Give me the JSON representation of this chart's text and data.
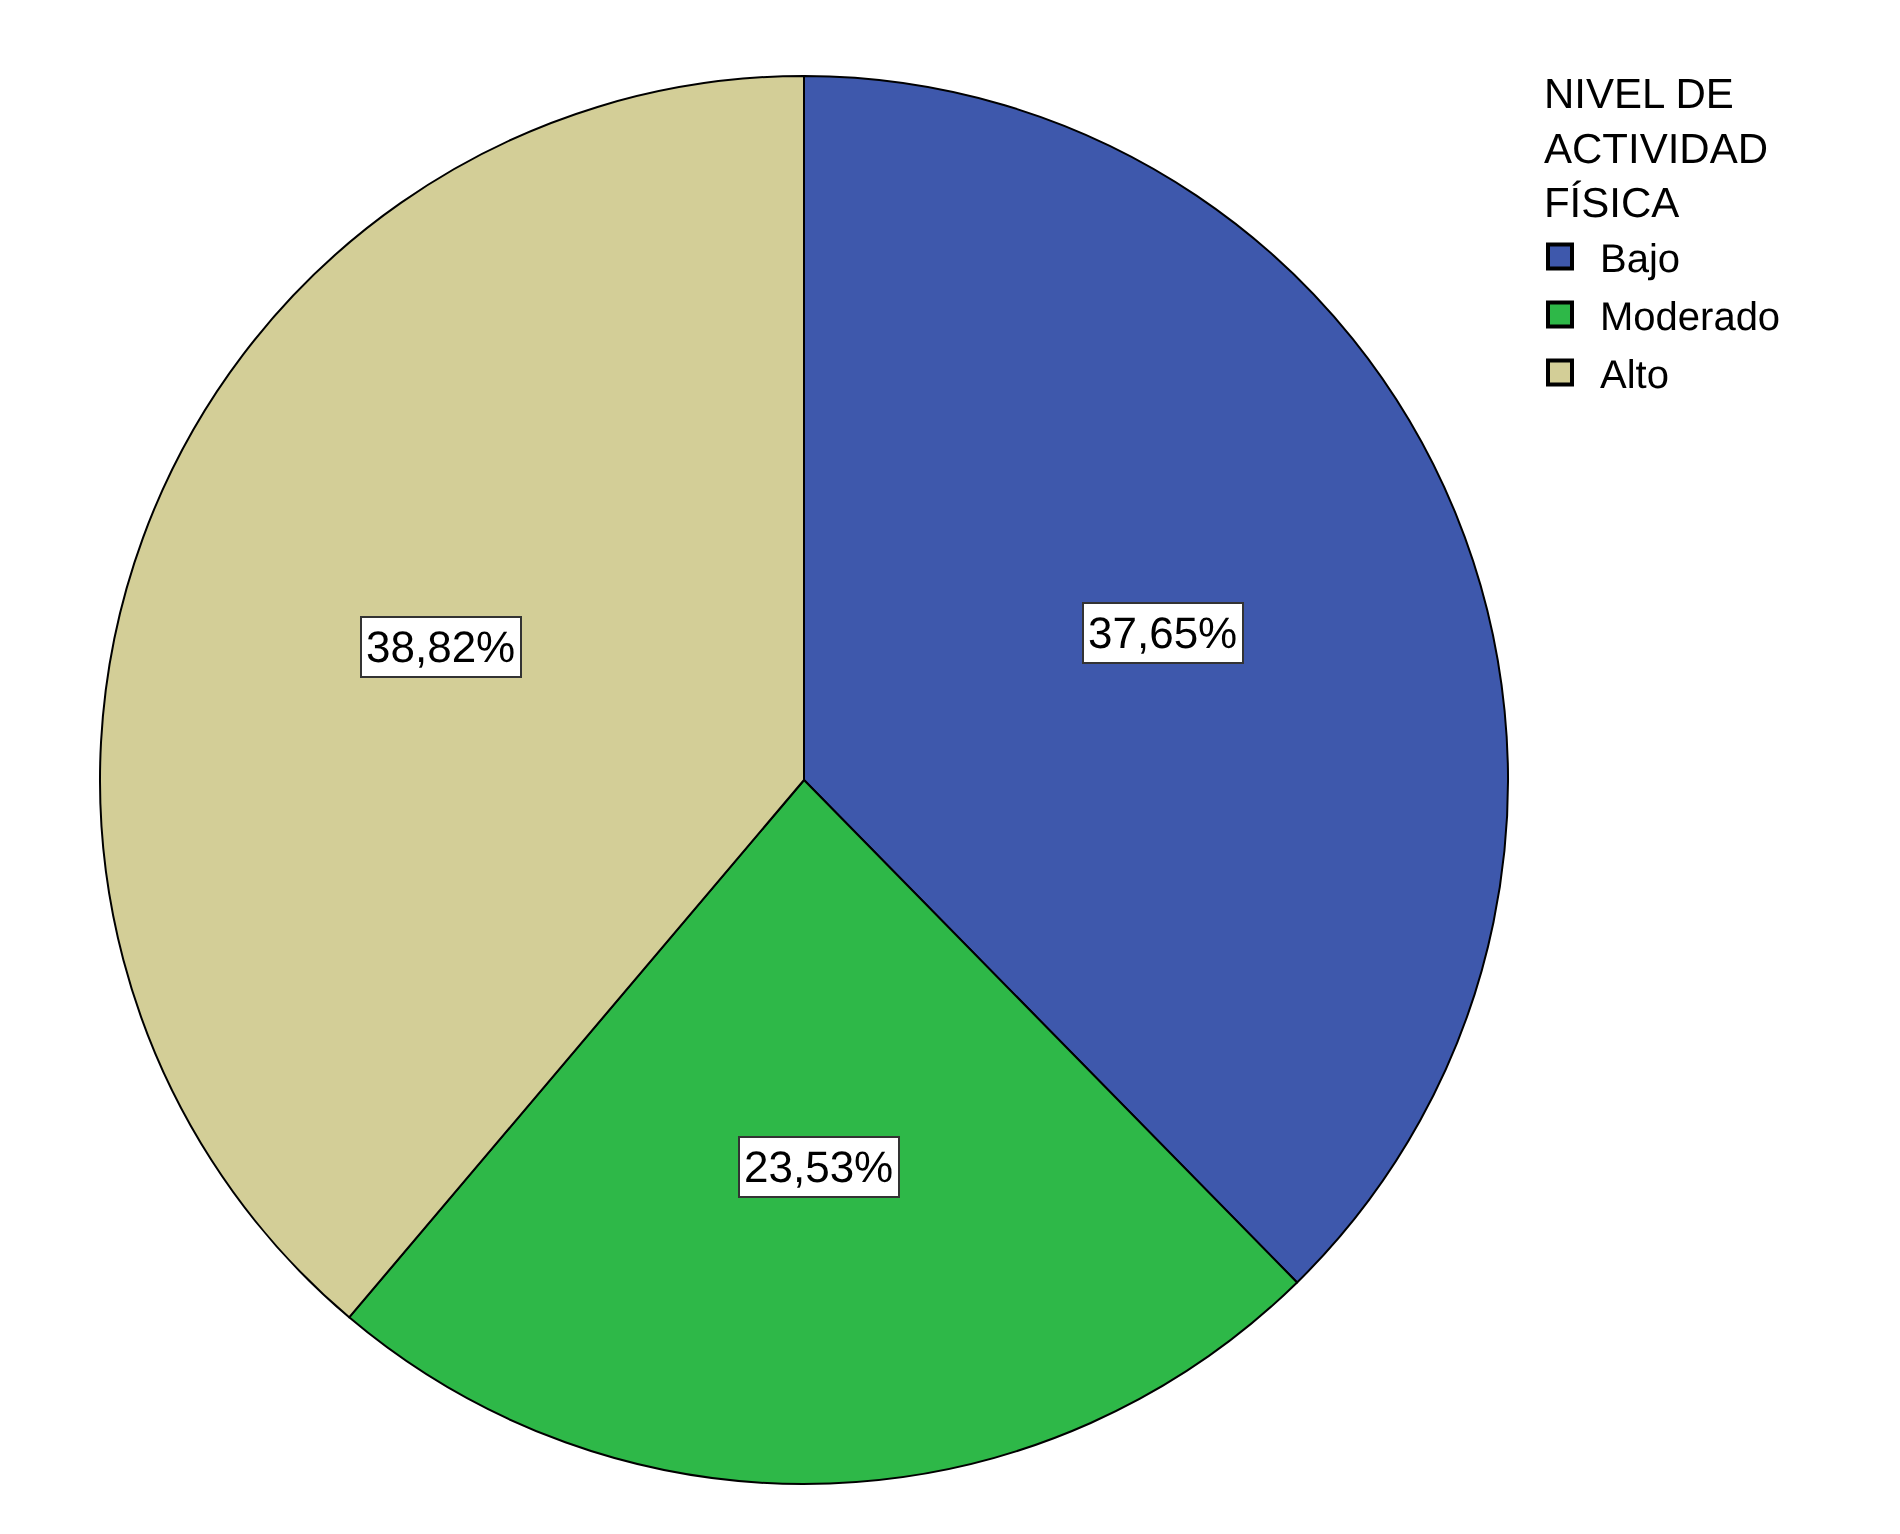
{
  "chart_data": {
    "type": "pie",
    "legend_title": "NIVEL DE ACTIVIDAD FÍSICA",
    "categories": [
      "Bajo",
      "Moderado",
      "Alto"
    ],
    "values": [
      37.65,
      23.53,
      38.82
    ],
    "colors": [
      "#3e58ac",
      "#2eb848",
      "#d3ce97"
    ],
    "value_labels": [
      "37,65%",
      "23,53%",
      "38,82%"
    ],
    "legend": "top right"
  }
}
